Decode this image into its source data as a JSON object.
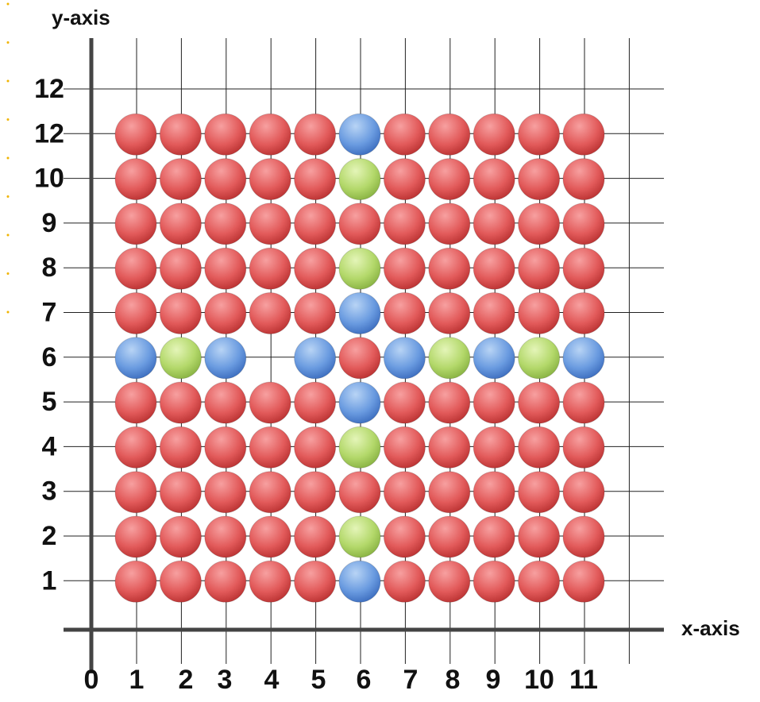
{
  "axis_labels": {
    "y": "y-axis",
    "x": "x-axis"
  },
  "y_labels": [
    "12",
    "12",
    "10",
    "9",
    "8",
    "7",
    "6",
    "5",
    "4",
    "3",
    "2",
    "1"
  ],
  "x_labels": [
    "0",
    "1",
    "2",
    "3",
    "4",
    "5",
    "6",
    "7",
    "8",
    "9",
    "10",
    "11"
  ],
  "rows": [
    [
      "red",
      "red",
      "red",
      "red",
      "red",
      "blue",
      "red",
      "red",
      "red",
      "red",
      "red"
    ],
    [
      "red",
      "red",
      "red",
      "red",
      "red",
      "green",
      "red",
      "red",
      "red",
      "red",
      "red"
    ],
    [
      "red",
      "red",
      "red",
      "red",
      "red",
      "red",
      "red",
      "red",
      "red",
      "red",
      "red"
    ],
    [
      "red",
      "red",
      "red",
      "red",
      "red",
      "green",
      "red",
      "red",
      "red",
      "red",
      "red"
    ],
    [
      "red",
      "red",
      "red",
      "red",
      "red",
      "blue",
      "red",
      "red",
      "red",
      "red",
      "red"
    ],
    [
      "blue",
      "green",
      "blue",
      null,
      "blue",
      "red",
      "blue",
      "green",
      "blue",
      "green",
      "blue"
    ],
    [
      "red",
      "red",
      "red",
      "red",
      "red",
      "blue",
      "red",
      "red",
      "red",
      "red",
      "red"
    ],
    [
      "red",
      "red",
      "red",
      "red",
      "red",
      "green",
      "red",
      "red",
      "red",
      "red",
      "red"
    ],
    [
      "red",
      "red",
      "red",
      "red",
      "red",
      "red",
      "red",
      "red",
      "red",
      "red",
      "red"
    ],
    [
      "red",
      "red",
      "red",
      "red",
      "red",
      "green",
      "red",
      "red",
      "red",
      "red",
      "red"
    ],
    [
      "red",
      "red",
      "red",
      "red",
      "red",
      "blue",
      "red",
      "red",
      "red",
      "red",
      "red"
    ]
  ]
}
